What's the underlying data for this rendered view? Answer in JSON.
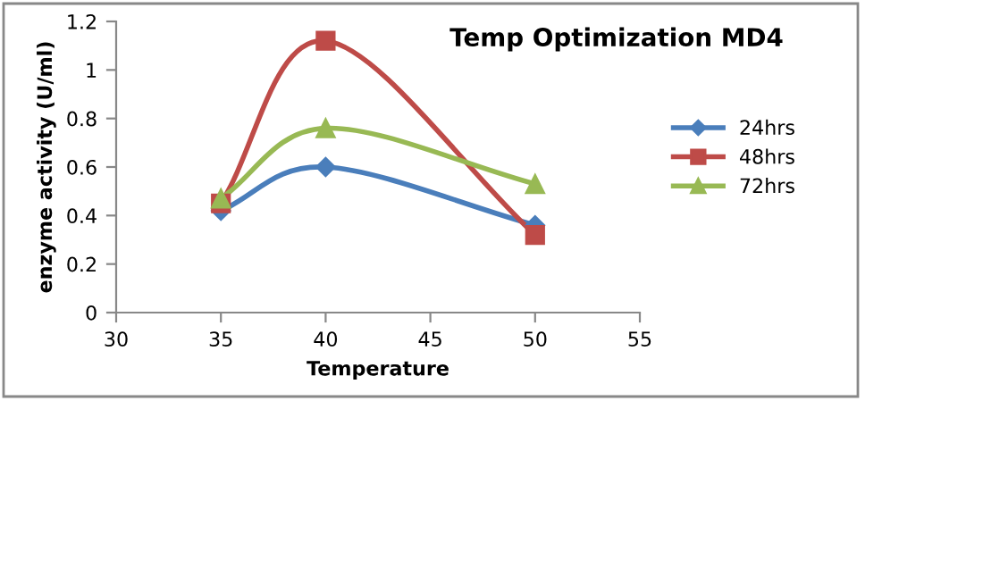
{
  "chart_data": {
    "type": "line",
    "title": "Temp Optimization MD4",
    "xlabel": "Temperature",
    "ylabel": "enzyme activity (U/ml)",
    "x": [
      35,
      40,
      50
    ],
    "series": [
      {
        "name": "24hrs",
        "color": "#4a7ebb",
        "marker": "diamond",
        "values": [
          0.42,
          0.6,
          0.36
        ]
      },
      {
        "name": "48hrs",
        "color": "#be4b48",
        "marker": "square",
        "values": [
          0.45,
          1.12,
          0.32
        ]
      },
      {
        "name": "72hrs",
        "color": "#98b954",
        "marker": "triangle",
        "values": [
          0.47,
          0.76,
          0.53
        ]
      }
    ],
    "xlim": [
      30,
      55
    ],
    "xticks": [
      30,
      35,
      40,
      45,
      50,
      55
    ],
    "ylim": [
      0,
      1.2
    ],
    "yticks": [
      0,
      0.2,
      0.4,
      0.6,
      0.8,
      1,
      1.2
    ],
    "grid": false,
    "legend": "right",
    "line_style": "solid"
  }
}
